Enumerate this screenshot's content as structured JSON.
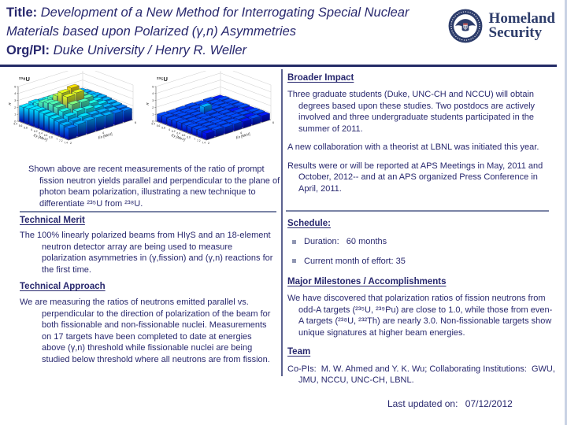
{
  "header": {
    "title_label": "Title:",
    "title_text": " Development of a New Method for Interrogating Special Nuclear Materials based upon Polarized (γ,n) Asymmetries",
    "org_label": "Org/PI:",
    "org_text": " Duke University / Henry R. Weller",
    "logo_line1": "Homeland",
    "logo_line2": "Security"
  },
  "figure": {
    "caption": "Shown above are recent measurements of the ratio of prompt fission neutron yields parallel and perpendicular to the plane of photon beam polarization, illustrating a new technique to differentiate ²³⁵U from ²³⁸U."
  },
  "left": {
    "technical_merit": {
      "heading": "Technical Merit",
      "body": "The 100% linearly polarized beams from HIγS and an 18-element neutron detector array are being used to measure polarization asymmetries in (γ,fission) and (γ,n) reactions for the first time."
    },
    "technical_approach": {
      "heading": "Technical Approach",
      "body": "We are measuring the ratios of neutrons emitted parallel vs. perpendicular to the direction of polarization of the beam for both fissionable and non-fissionable nuclei.  Measurements on 17 targets have been completed to date at energies above (γ,n) threshold while fissionable nuclei are being studied below threshold where all neutrons are from fission."
    }
  },
  "right": {
    "broader_impact": {
      "heading": "Broader Impact",
      "paragraphs": [
        "Three graduate students (Duke, UNC-CH and NCCU) will obtain degrees based upon these studies.  Two postdocs are actively involved and three undergraduate students participated in the summer of 2011.",
        "A new collaboration with a theorist at LBNL was initiated this year.",
        "Results were or will be reported at APS Meetings in May, 2011 and October, 2012-- and at an APS organized Press Conference in April, 2011."
      ]
    },
    "schedule": {
      "heading": "Schedule:",
      "items": [
        "Duration:   60 months",
        "Current month of effort: 35"
      ]
    },
    "milestones": {
      "heading": "Major Milestones / Accomplishments",
      "body": "We have discovered that polarization ratios of fission neutrons from odd-A targets (²³⁵U, ²³⁹Pu) are close to 1.0, while those from even-A targets (²³⁸U, ²³²Th) are nearly 3.0.  Non-fissionable targets show unique signatures at higher beam energies."
    },
    "team": {
      "heading": "Team",
      "body": "Co-PIs:  M. W. Ahmed and Y. K. Wu; Collaborating Institutions:  GWU, JMU, NCCU, UNC-CH, LBNL."
    }
  },
  "footer": {
    "label": "Last updated on:",
    "date": "07/12/2012"
  },
  "colors": {
    "text_navy": "#28286E",
    "rule_navy": "#232b66",
    "divider": "#7b84a6",
    "logo_navy": "#2e3d6b"
  },
  "chart_data": [
    {
      "type": "bar",
      "subtype": "3d-lego",
      "title": "²³⁸U",
      "xlabel": "Eγ [MeV]",
      "ylabel": "En [MeV]",
      "zlabel": "R",
      "x_ticks": [
        "5.4",
        "5.6",
        "5.8",
        "6",
        "6.2",
        "6.4",
        "6.6",
        "6.8",
        "7",
        "7.2",
        "7.4"
      ],
      "y_ticks": [
        "2",
        "4",
        "6"
      ],
      "z_ticks": [
        "0",
        "1",
        "2",
        "3",
        "4",
        "5"
      ],
      "x_range": [
        5.4,
        7.4
      ],
      "y_range": [
        2,
        6
      ],
      "zlim": [
        0,
        5
      ],
      "values": [
        [
          2.2,
          2.4,
          2.3,
          2.2,
          2.1,
          2.0,
          1.9
        ],
        [
          2.3,
          2.6,
          2.8,
          2.6,
          2.3,
          2.1,
          2.0
        ],
        [
          2.4,
          3.0,
          3.3,
          3.1,
          2.6,
          2.2,
          2.0
        ],
        [
          2.5,
          3.2,
          3.8,
          3.6,
          2.9,
          2.4,
          2.1
        ],
        [
          2.4,
          3.3,
          4.5,
          4.8,
          3.3,
          2.5,
          2.1
        ],
        [
          2.3,
          3.1,
          4.2,
          4.4,
          3.2,
          2.4,
          2.0
        ],
        [
          2.2,
          2.8,
          3.4,
          3.3,
          2.7,
          2.2,
          1.9
        ],
        [
          2.0,
          2.4,
          2.7,
          2.6,
          2.3,
          2.0,
          1.8
        ],
        [
          1.8,
          2.0,
          2.2,
          2.1,
          2.0,
          1.8,
          1.7
        ],
        [
          1.6,
          1.8,
          1.9,
          1.9,
          1.8,
          1.7,
          1.6
        ]
      ]
    },
    {
      "type": "bar",
      "subtype": "3d-lego",
      "title": "²³⁵U",
      "xlabel": "Eγ [MeV]",
      "ylabel": "En [MeV]",
      "zlabel": "R",
      "x_ticks": [
        "5.4",
        "5.6",
        "5.8",
        "6",
        "6.2",
        "6.4",
        "6.6",
        "6.8",
        "7",
        "7.2",
        "7.4"
      ],
      "y_ticks": [
        "2",
        "4",
        "6"
      ],
      "z_ticks": [
        "0",
        "1",
        "2",
        "3",
        "4",
        "5"
      ],
      "x_range": [
        5.4,
        7.4
      ],
      "y_range": [
        2,
        6
      ],
      "zlim": [
        0,
        5
      ],
      "values": [
        [
          1.0,
          0.95,
          1.0,
          1.05,
          0.95,
          1.0,
          0.9
        ],
        [
          1.05,
          1.0,
          0.95,
          1.0,
          1.05,
          0.95,
          1.0
        ],
        [
          0.95,
          1.05,
          1.1,
          1.0,
          0.95,
          1.0,
          0.95
        ],
        [
          1.0,
          1.0,
          1.05,
          1.8,
          1.1,
          0.95,
          1.0
        ],
        [
          1.05,
          0.95,
          1.0,
          1.1,
          1.0,
          1.0,
          0.95
        ],
        [
          0.95,
          1.0,
          1.05,
          0.95,
          1.0,
          0.9,
          1.0
        ],
        [
          1.0,
          1.05,
          0.95,
          1.0,
          0.95,
          1.0,
          0.9
        ],
        [
          0.95,
          1.0,
          1.0,
          1.05,
          1.0,
          0.95,
          0.95
        ],
        [
          1.0,
          0.95,
          1.05,
          0.95,
          1.0,
          0.9,
          0.95
        ],
        [
          0.9,
          1.0,
          0.95,
          1.0,
          0.9,
          0.95,
          0.9
        ]
      ]
    }
  ]
}
